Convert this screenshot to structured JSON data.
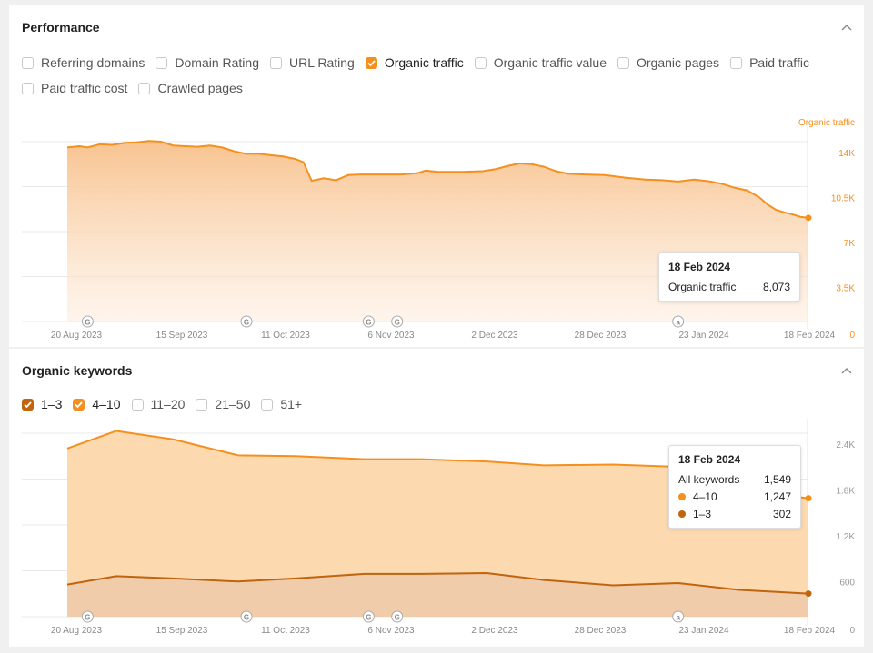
{
  "performance": {
    "title": "Performance",
    "metrics": [
      {
        "label": "Referring domains",
        "checked": false
      },
      {
        "label": "Domain Rating",
        "checked": false
      },
      {
        "label": "URL Rating",
        "checked": false
      },
      {
        "label": "Organic traffic",
        "checked": true
      },
      {
        "label": "Organic traffic value",
        "checked": false
      },
      {
        "label": "Organic pages",
        "checked": false
      },
      {
        "label": "Paid traffic",
        "checked": false
      },
      {
        "label": "Paid traffic cost",
        "checked": false
      },
      {
        "label": "Crawled pages",
        "checked": false
      }
    ],
    "tooltip": {
      "date": "18 Feb 2024",
      "label": "Organic traffic",
      "value": "8,073"
    }
  },
  "keywords": {
    "title": "Organic keywords",
    "filters": [
      {
        "label": "1–3",
        "checked": true,
        "color": "#c0640e"
      },
      {
        "label": "4–10",
        "checked": true,
        "color": "#f4901e"
      },
      {
        "label": "11–20",
        "checked": false
      },
      {
        "label": "21–50",
        "checked": false
      },
      {
        "label": "51+",
        "checked": false
      }
    ],
    "tooltip": {
      "date": "18 Feb 2024",
      "rows": [
        {
          "label": "All keywords",
          "value": "1,549"
        },
        {
          "label": "4–10",
          "value": "1,247",
          "color": "#f4901e"
        },
        {
          "label": "1–3",
          "value": "302",
          "color": "#c0640e"
        }
      ]
    }
  },
  "chart_data": [
    {
      "type": "area",
      "axis_label": "Organic traffic",
      "x_ticks": [
        "20 Aug 2023",
        "15 Sep 2023",
        "11 Oct 2023",
        "6 Nov 2023",
        "2 Dec 2023",
        "28 Dec 2023",
        "23 Jan 2024",
        "18 Feb 2024"
      ],
      "y_ticks": [
        "14K",
        "10.5K",
        "7K",
        "3.5K",
        "0"
      ],
      "ylim": [
        0,
        14000
      ],
      "annotation_markers": [
        {
          "date": "2023-08-25",
          "label": "G"
        },
        {
          "date": "2023-10-03",
          "label": "G"
        },
        {
          "date": "2023-11-02",
          "label": "G"
        },
        {
          "date": "2023-11-09",
          "label": "G"
        },
        {
          "date": "2024-01-17",
          "label": "a"
        }
      ],
      "series": [
        {
          "name": "Organic traffic",
          "color": "#f4901e",
          "points": [
            [
              "2023-08-20",
              13550
            ],
            [
              "2023-08-23",
              13650
            ],
            [
              "2023-08-25",
              13550
            ],
            [
              "2023-08-28",
              13800
            ],
            [
              "2023-08-31",
              13750
            ],
            [
              "2023-09-03",
              13900
            ],
            [
              "2023-09-06",
              13950
            ],
            [
              "2023-09-09",
              14050
            ],
            [
              "2023-09-12",
              14000
            ],
            [
              "2023-09-15",
              13700
            ],
            [
              "2023-09-18",
              13650
            ],
            [
              "2023-09-21",
              13600
            ],
            [
              "2023-09-24",
              13700
            ],
            [
              "2023-09-27",
              13550
            ],
            [
              "2023-09-30",
              13250
            ],
            [
              "2023-10-03",
              13050
            ],
            [
              "2023-10-06",
              13050
            ],
            [
              "2023-10-09",
              12950
            ],
            [
              "2023-10-12",
              12850
            ],
            [
              "2023-10-15",
              12650
            ],
            [
              "2023-10-17",
              12400
            ],
            [
              "2023-10-19",
              10950
            ],
            [
              "2023-10-22",
              11150
            ],
            [
              "2023-10-25",
              11000
            ],
            [
              "2023-10-28",
              11400
            ],
            [
              "2023-10-31",
              11450
            ],
            [
              "2023-11-05",
              11450
            ],
            [
              "2023-11-10",
              11450
            ],
            [
              "2023-11-14",
              11550
            ],
            [
              "2023-11-16",
              11750
            ],
            [
              "2023-11-19",
              11650
            ],
            [
              "2023-11-25",
              11650
            ],
            [
              "2023-11-30",
              11700
            ],
            [
              "2023-12-03",
              11850
            ],
            [
              "2023-12-06",
              12100
            ],
            [
              "2023-12-09",
              12300
            ],
            [
              "2023-12-12",
              12250
            ],
            [
              "2023-12-15",
              12050
            ],
            [
              "2023-12-18",
              11700
            ],
            [
              "2023-12-21",
              11500
            ],
            [
              "2023-12-25",
              11450
            ],
            [
              "2023-12-30",
              11400
            ],
            [
              "2024-01-04",
              11200
            ],
            [
              "2024-01-09",
              11050
            ],
            [
              "2024-01-13",
              11000
            ],
            [
              "2024-01-17",
              10900
            ],
            [
              "2024-01-21",
              11050
            ],
            [
              "2024-01-25",
              10900
            ],
            [
              "2024-01-28",
              10700
            ],
            [
              "2024-01-31",
              10400
            ],
            [
              "2024-02-03",
              10200
            ],
            [
              "2024-02-06",
              9650
            ],
            [
              "2024-02-08",
              9100
            ],
            [
              "2024-02-10",
              8700
            ],
            [
              "2024-02-12",
              8500
            ],
            [
              "2024-02-14",
              8350
            ],
            [
              "2024-02-16",
              8150
            ],
            [
              "2024-02-18",
              8073
            ]
          ]
        }
      ]
    },
    {
      "type": "area",
      "x_ticks": [
        "20 Aug 2023",
        "15 Sep 2023",
        "11 Oct 2023",
        "6 Nov 2023",
        "2 Dec 2023",
        "28 Dec 2023",
        "23 Jan 2024",
        "18 Feb 2024"
      ],
      "y_ticks": [
        "2.4K",
        "1.8K",
        "1.2K",
        "600",
        "0"
      ],
      "ylim": [
        0,
        2400
      ],
      "stacked": true,
      "annotation_markers": [
        {
          "date": "2023-08-25",
          "label": "G"
        },
        {
          "date": "2023-10-03",
          "label": "G"
        },
        {
          "date": "2023-11-02",
          "label": "G"
        },
        {
          "date": "2023-11-09",
          "label": "G"
        },
        {
          "date": "2024-01-17",
          "label": "a"
        }
      ],
      "series": [
        {
          "name": "1–3",
          "color": "#c0640e",
          "points": [
            [
              "2023-08-20",
              420
            ],
            [
              "2023-09-01",
              530
            ],
            [
              "2023-09-15",
              500
            ],
            [
              "2023-10-01",
              460
            ],
            [
              "2023-10-15",
              500
            ],
            [
              "2023-11-01",
              560
            ],
            [
              "2023-11-15",
              560
            ],
            [
              "2023-12-01",
              570
            ],
            [
              "2023-12-15",
              480
            ],
            [
              "2024-01-01",
              410
            ],
            [
              "2024-01-17",
              440
            ],
            [
              "2024-02-01",
              350
            ],
            [
              "2024-02-18",
              302
            ]
          ]
        },
        {
          "name": "4–10",
          "color": "#f4901e",
          "points": [
            [
              "2023-08-20",
              1780
            ],
            [
              "2023-09-01",
              1900
            ],
            [
              "2023-09-15",
              1820
            ],
            [
              "2023-10-01",
              1650
            ],
            [
              "2023-10-15",
              1600
            ],
            [
              "2023-11-01",
              1500
            ],
            [
              "2023-11-15",
              1500
            ],
            [
              "2023-12-01",
              1460
            ],
            [
              "2023-12-15",
              1500
            ],
            [
              "2024-01-01",
              1580
            ],
            [
              "2024-01-17",
              1520
            ],
            [
              "2024-02-01",
              1300
            ],
            [
              "2024-02-18",
              1247
            ]
          ]
        }
      ]
    }
  ]
}
